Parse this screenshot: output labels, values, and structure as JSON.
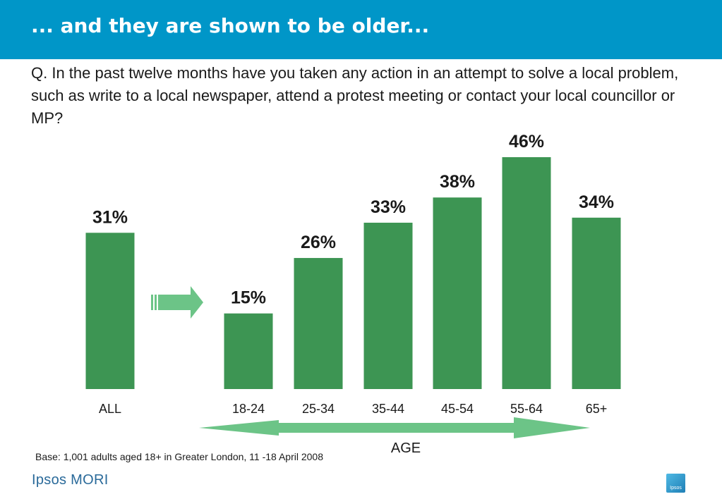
{
  "header": {
    "title": "... and they are shown to be older..."
  },
  "question": "Q. In the past twelve months have you taken any action in an attempt to solve a local problem, such as write to a local newspaper, attend a protest meeting or contact your local councillor or MP?",
  "chart_data": {
    "type": "bar",
    "categories": [
      "ALL",
      "18-24",
      "25-34",
      "35-44",
      "45-54",
      "55-64",
      "65+"
    ],
    "values": [
      31,
      15,
      26,
      33,
      38,
      46,
      34
    ],
    "data_labels": [
      "31%",
      "15%",
      "26%",
      "33%",
      "38%",
      "46%",
      "34%"
    ],
    "unit": "%",
    "group_label": "AGE",
    "bar_color": "#3d9553",
    "arrow_color": "#6cc487",
    "grid": false
  },
  "footer": {
    "base_note": "Base: 1,001 adults aged 18+ in Greater London, 11 -18 April 2008",
    "logo": "Ipsos MORI",
    "badge_text": "Ipsos"
  },
  "colors": {
    "header_bg": "#0096c8",
    "logo_text": "#2a6a9a"
  },
  "icons": {
    "arrow": "right-arrow-icon",
    "double_arrow": "double-headed-arrow-icon"
  }
}
